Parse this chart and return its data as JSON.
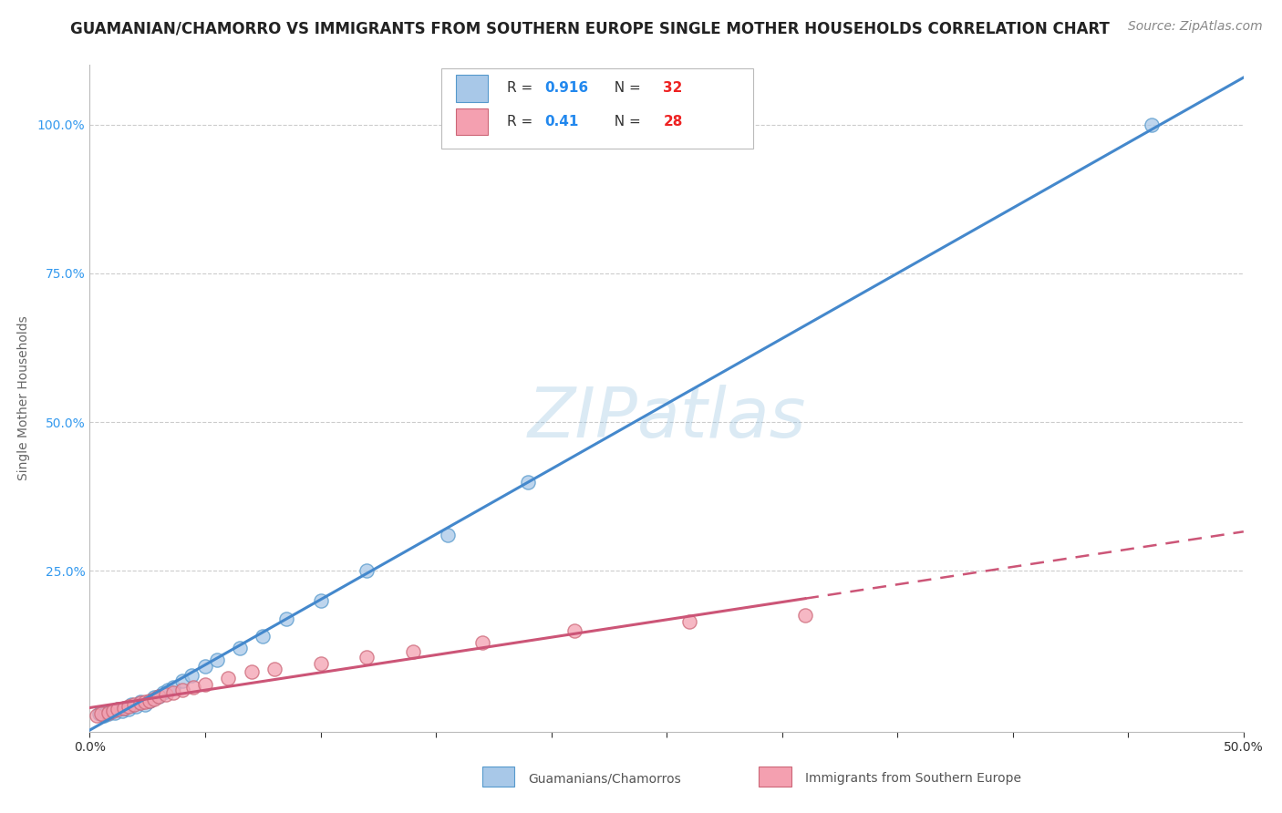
{
  "title": "GUAMANIAN/CHAMORRO VS IMMIGRANTS FROM SOUTHERN EUROPE SINGLE MOTHER HOUSEHOLDS CORRELATION CHART",
  "source": "Source: ZipAtlas.com",
  "ylabel": "Single Mother Households",
  "xmin": 0.0,
  "xmax": 0.5,
  "ymin": -0.02,
  "ymax": 1.1,
  "yticks": [
    0.0,
    0.25,
    0.5,
    0.75,
    1.0
  ],
  "ytick_labels": [
    "",
    "25.0%",
    "50.0%",
    "75.0%",
    "100.0%"
  ],
  "xticks": [
    0.0,
    0.05,
    0.1,
    0.15,
    0.2,
    0.25,
    0.3,
    0.35,
    0.4,
    0.45,
    0.5
  ],
  "xtick_labels": [
    "0.0%",
    "",
    "",
    "",
    "",
    "",
    "",
    "",
    "",
    "",
    "50.0%"
  ],
  "blue_fill": "#a8c8e8",
  "blue_edge": "#5599cc",
  "pink_fill": "#f4a0b0",
  "pink_edge": "#cc6677",
  "blue_line_color": "#4488cc",
  "pink_line_color": "#cc5577",
  "R_blue": 0.916,
  "N_blue": 32,
  "R_pink": 0.41,
  "N_pink": 28,
  "legend_label_blue": "Guamanians/Chamorros",
  "legend_label_pink": "Immigrants from Southern Europe",
  "watermark": "ZIPatlas",
  "blue_scatter_x": [
    0.004,
    0.006,
    0.007,
    0.008,
    0.01,
    0.011,
    0.012,
    0.014,
    0.015,
    0.017,
    0.018,
    0.02,
    0.022,
    0.024,
    0.026,
    0.028,
    0.03,
    0.032,
    0.034,
    0.036,
    0.04,
    0.044,
    0.05,
    0.055,
    0.065,
    0.075,
    0.085,
    0.1,
    0.12,
    0.155,
    0.19,
    0.46
  ],
  "blue_scatter_y": [
    0.01,
    0.008,
    0.012,
    0.01,
    0.015,
    0.012,
    0.018,
    0.015,
    0.02,
    0.018,
    0.025,
    0.022,
    0.03,
    0.025,
    0.032,
    0.038,
    0.04,
    0.045,
    0.05,
    0.055,
    0.065,
    0.075,
    0.09,
    0.1,
    0.12,
    0.14,
    0.17,
    0.2,
    0.25,
    0.31,
    0.4,
    1.0
  ],
  "pink_scatter_x": [
    0.003,
    0.005,
    0.008,
    0.01,
    0.012,
    0.015,
    0.017,
    0.019,
    0.022,
    0.024,
    0.026,
    0.028,
    0.03,
    0.033,
    0.036,
    0.04,
    0.045,
    0.05,
    0.06,
    0.07,
    0.08,
    0.1,
    0.12,
    0.14,
    0.17,
    0.21,
    0.26,
    0.31
  ],
  "pink_scatter_y": [
    0.008,
    0.01,
    0.012,
    0.015,
    0.018,
    0.02,
    0.022,
    0.025,
    0.028,
    0.03,
    0.032,
    0.035,
    0.04,
    0.042,
    0.045,
    0.05,
    0.055,
    0.06,
    0.07,
    0.08,
    0.085,
    0.095,
    0.105,
    0.115,
    0.13,
    0.15,
    0.165,
    0.175
  ],
  "title_fontsize": 12,
  "axis_label_fontsize": 10,
  "tick_fontsize": 10,
  "source_fontsize": 10
}
